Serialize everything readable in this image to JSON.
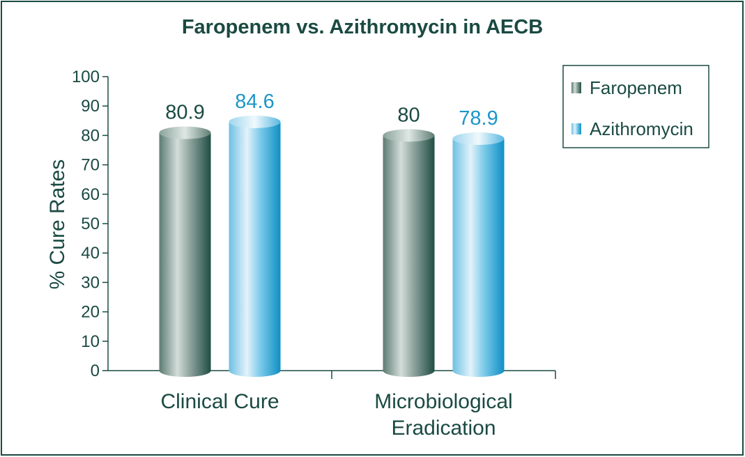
{
  "chart_data": {
    "type": "bar",
    "title": "Faropenem vs. Azithromycin in AECB",
    "xlabel": "",
    "ylabel": "% Cure Rates",
    "ylim": [
      0,
      100
    ],
    "yticks": [
      0,
      10,
      20,
      30,
      40,
      50,
      60,
      70,
      80,
      90,
      100
    ],
    "categories": [
      [
        "Clinical Cure"
      ],
      [
        "Microbiological",
        "Eradication"
      ]
    ],
    "series": [
      {
        "name": "Faropenem",
        "values": [
          80.9,
          80
        ],
        "labels": [
          "80.9",
          "80"
        ]
      },
      {
        "name": "Azithromycin",
        "values": [
          84.6,
          78.9
        ],
        "labels": [
          "84.6",
          "78.9"
        ]
      }
    ],
    "grid": false,
    "legend": "top-right"
  },
  "colors": {
    "frame": "#1a4a42",
    "text": "#1a4a42",
    "azithromycin_label": "#1b96c8",
    "faropenem_dark": "#1f4d43",
    "faropenem_light": "#c8d5d0",
    "azithromycin_dark": "#0f8fc4",
    "azithromycin_light": "#d6eef8"
  }
}
